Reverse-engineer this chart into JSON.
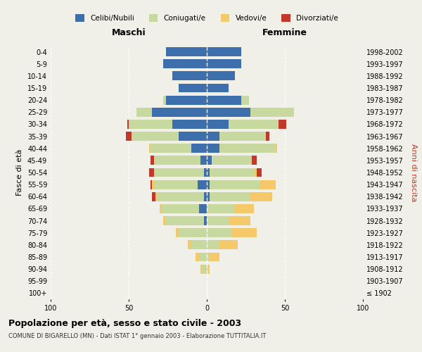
{
  "age_groups": [
    "100+",
    "95-99",
    "90-94",
    "85-89",
    "80-84",
    "75-79",
    "70-74",
    "65-69",
    "60-64",
    "55-59",
    "50-54",
    "45-49",
    "40-44",
    "35-39",
    "30-34",
    "25-29",
    "20-24",
    "15-19",
    "10-14",
    "5-9",
    "0-4"
  ],
  "birth_years": [
    "≤ 1902",
    "1903-1907",
    "1908-1912",
    "1913-1917",
    "1918-1922",
    "1923-1927",
    "1928-1932",
    "1933-1937",
    "1938-1942",
    "1943-1947",
    "1948-1952",
    "1953-1957",
    "1958-1962",
    "1963-1967",
    "1968-1972",
    "1973-1977",
    "1978-1982",
    "1983-1987",
    "1988-1992",
    "1993-1997",
    "1998-2002"
  ],
  "males": {
    "celibe": [
      0,
      0,
      0,
      0,
      0,
      0,
      2,
      5,
      2,
      6,
      2,
      4,
      10,
      18,
      22,
      35,
      26,
      18,
      22,
      28,
      26
    ],
    "coniugato": [
      0,
      0,
      3,
      5,
      10,
      18,
      24,
      24,
      30,
      28,
      32,
      30,
      26,
      30,
      28,
      10,
      2,
      0,
      0,
      0,
      0
    ],
    "vedovo": [
      0,
      0,
      1,
      2,
      2,
      2,
      2,
      1,
      1,
      1,
      0,
      0,
      1,
      0,
      0,
      0,
      0,
      0,
      0,
      0,
      0
    ],
    "divorziato": [
      0,
      0,
      0,
      0,
      0,
      0,
      0,
      0,
      2,
      1,
      3,
      2,
      0,
      4,
      1,
      0,
      0,
      0,
      0,
      0,
      0
    ]
  },
  "females": {
    "nubile": [
      0,
      0,
      0,
      0,
      0,
      0,
      0,
      0,
      2,
      2,
      2,
      3,
      8,
      8,
      14,
      28,
      22,
      14,
      18,
      22,
      22
    ],
    "coniugata": [
      0,
      0,
      0,
      2,
      8,
      16,
      14,
      18,
      26,
      32,
      28,
      26,
      36,
      30,
      32,
      28,
      5,
      0,
      0,
      0,
      0
    ],
    "vedova": [
      0,
      0,
      2,
      6,
      12,
      16,
      14,
      12,
      14,
      10,
      2,
      0,
      1,
      0,
      0,
      0,
      0,
      0,
      0,
      0,
      0
    ],
    "divorziata": [
      0,
      0,
      0,
      0,
      0,
      0,
      0,
      0,
      0,
      0,
      3,
      3,
      0,
      2,
      5,
      0,
      0,
      0,
      0,
      0,
      0
    ]
  },
  "colors": {
    "celibe": "#3d6fad",
    "coniugato": "#c8d9a0",
    "vedovo": "#f5c96a",
    "divorziato": "#c0392b"
  },
  "xlim": 100,
  "title": "Popolazione per età, sesso e stato civile - 2003",
  "subtitle": "COMUNE DI BIGARELLO (MN) - Dati ISTAT 1° gennaio 2003 - Elaborazione TUTTITALIA.IT",
  "ylabel_left": "Fasce di età",
  "ylabel_right": "Anni di nascita",
  "xlabel_left": "Maschi",
  "xlabel_right": "Femmine",
  "legend_labels": [
    "Celibi/Nubili",
    "Coniugati/e",
    "Vedovi/e",
    "Divorziati/e"
  ],
  "bg_color": "#f0f0e8"
}
